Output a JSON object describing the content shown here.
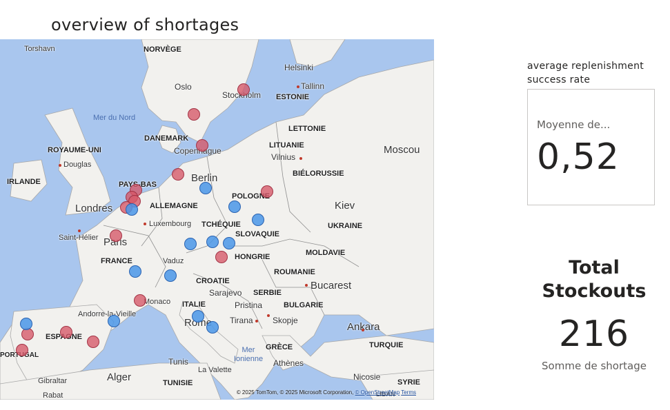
{
  "map_visual": {
    "title": "overview of shortages",
    "attribution_prefix": "© 2025 TomTom, © 2025 Microsoft Corporation,",
    "attribution_osm": "© OpenStreetMap",
    "attribution_terms": "Terms",
    "bubble_colors": {
      "red": "#d65768",
      "blue": "#4a96e8"
    },
    "countries": [
      "NORVÈGE",
      "ESTONIE",
      "LETTONIE",
      "LITUANIE",
      "DANEMARK",
      "ROYAUME-UNI",
      "IRLANDE",
      "BIÉLORUSSIE",
      "PAYS-BAS",
      "ALLEMAGNE",
      "POLOGNE",
      "UKRAINE",
      "TCHÉQUIE",
      "SLOVAQUIE",
      "FRANCE",
      "MOLDAVIE",
      "HONGRIE",
      "ROUMANIE",
      "CROATIE",
      "SERBIE",
      "BULGARIE",
      "ITALIE",
      "ESPAGNE",
      "PORTUGAL",
      "GRÈCE",
      "TURQUIE",
      "TUNISIE",
      "SYRIE",
      "LIBAN"
    ],
    "cities": [
      "Torshavn",
      "Helsinki",
      "Oslo",
      "Tallinn",
      "Stockholm",
      "Vilnius",
      "Moscou",
      "Copenhague",
      "Douglas",
      "Berlin",
      "Londres",
      "Kiev",
      "Luxembourg",
      "Saint-Hélier",
      "Paris",
      "Vaduz",
      "Bucarest",
      "Sarajevo",
      "Monaco",
      "Andorre-la-Vieille",
      "Pristina",
      "Skopje",
      "Tirana",
      "Rome",
      "Ankara",
      "Athènes",
      "Tunis",
      "La Valette",
      "Alger",
      "Nicosie",
      "Gibraltar",
      "Rabat"
    ],
    "seas": [
      "Mer du Nord",
      "Mer Ionienne"
    ]
  },
  "kpi_replenishment": {
    "title": "average replenishment success rate",
    "caption": "Moyenne de...",
    "value": "0,52"
  },
  "kpi_stockouts": {
    "title": "Total Stockouts",
    "value": "216",
    "caption": "Somme de shortage"
  }
}
